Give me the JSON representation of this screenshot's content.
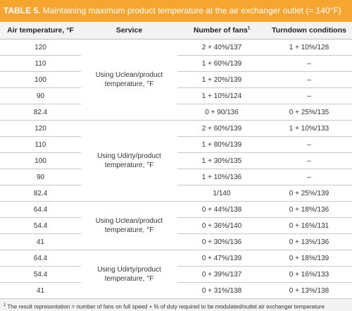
{
  "title": {
    "label": "TABLE 5.",
    "text": "Maintaining maximum product temperature at the air exchanger outlet (= 140°F)"
  },
  "headers": {
    "air": "Air temperature, °F",
    "service": "Service",
    "fans": "Number of fans",
    "fans_sup": "1",
    "turndown": "Turndown conditions"
  },
  "groups": [
    {
      "service": "Using Uclean/product temperature, °F",
      "rows": [
        {
          "air": "120",
          "fans": "2 + 40%/137",
          "turndown": "1 + 10%/128"
        },
        {
          "air": "110",
          "fans": "1 + 60%/139",
          "turndown": "–"
        },
        {
          "air": "100",
          "fans": "1 + 20%/139",
          "turndown": "–"
        },
        {
          "air": "90",
          "fans": "1 + 10%/124",
          "turndown": "–"
        },
        {
          "air": "82.4",
          "fans": "0 + 90/136",
          "turndown": "0 + 25%/135"
        }
      ]
    },
    {
      "service": "Using Udirty/product temperature, °F",
      "rows": [
        {
          "air": "120",
          "fans": "2 + 60%/139",
          "turndown": "1 + 10%/133"
        },
        {
          "air": "110",
          "fans": "1 + 80%/139",
          "turndown": "–"
        },
        {
          "air": "100",
          "fans": "1 + 30%/135",
          "turndown": "–"
        },
        {
          "air": "90",
          "fans": "1 + 10%/136",
          "turndown": "–"
        },
        {
          "air": "82.4",
          "fans": "1/140",
          "turndown": "0 + 25%/139"
        }
      ]
    },
    {
      "service": "Using Uclean/product temperature, °F",
      "rows": [
        {
          "air": "64.4",
          "fans": "0 + 44%/138",
          "turndown": "0 + 18%/136"
        },
        {
          "air": "54.4",
          "fans": "0 + 36%/140",
          "turndown": "0 + 16%/131"
        },
        {
          "air": "41",
          "fans": "0 + 30%/136",
          "turndown": "0 + 13%/136"
        }
      ]
    },
    {
      "service": "Using Udirty/product temperature, °F",
      "rows": [
        {
          "air": "64.4",
          "fans": "0 + 47%/139",
          "turndown": "0 + 18%/139"
        },
        {
          "air": "54.4",
          "fans": "0 + 39%/137",
          "turndown": "0 + 16%/133"
        },
        {
          "air": "41",
          "fans": "0 + 31%/138",
          "turndown": "0 + 13%/138"
        }
      ]
    }
  ],
  "footnote": {
    "marker": "1",
    "text": "The result representation = number of fans on full speed + % of duty required to be modulated/outlet air exchanger temperature"
  }
}
